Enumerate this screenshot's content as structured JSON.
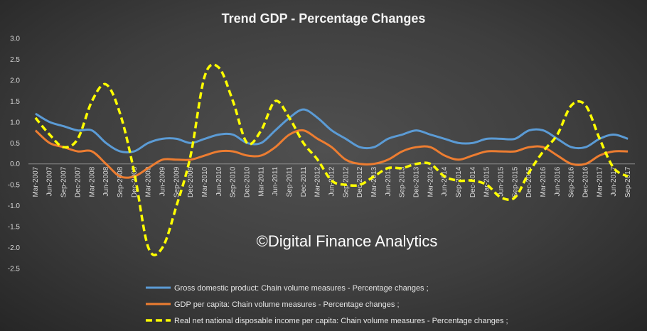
{
  "chart_data": {
    "type": "line",
    "title": "Trend GDP - Percentage Changes",
    "watermark": "©Digital Finance Analytics",
    "xlabel": "",
    "ylabel": "",
    "ylim": [
      -2.5,
      3.0
    ],
    "yticks": [
      "3.0",
      "2.5",
      "2.0",
      "1.5",
      "1.0",
      "0.5",
      "0.0",
      "-0.5",
      "-1.0",
      "-1.5",
      "-2.0",
      "-2.5"
    ],
    "grid": false,
    "legend_position": "bottom",
    "categories": [
      "Mar-2007",
      "Jun-2007",
      "Sep-2007",
      "Dec-2007",
      "Mar-2008",
      "Jun-2008",
      "Sep-2008",
      "Dec-2008",
      "Mar-2009",
      "Jun-2009",
      "Sep-2009",
      "Dec-2009",
      "Mar-2010",
      "Jun-2010",
      "Sep-2010",
      "Dec-2010",
      "Mar-2011",
      "Jun-2011",
      "Sep-2011",
      "Dec-2011",
      "Mar-2012",
      "Jun-2012",
      "Sep-2012",
      "Dec-2012",
      "Mar-2013",
      "Jun-2013",
      "Sep-2013",
      "Dec-2013",
      "Mar-2014",
      "Jun-2014",
      "Sep-2014",
      "Dec-2014",
      "Mar-2015",
      "Jun-2015",
      "Sep-2015",
      "Dec-2015",
      "Mar-2016",
      "Jun-2016",
      "Sep-2016",
      "Dec-2016",
      "Mar-2017",
      "Jun-2017",
      "Sep-2017"
    ],
    "series": [
      {
        "name": "Gross domestic product: Chain volume measures - Percentage changes ;",
        "color": "#5b9bd5",
        "dashed": false,
        "values": [
          1.2,
          1.0,
          0.9,
          0.8,
          0.8,
          0.5,
          0.3,
          0.3,
          0.5,
          0.6,
          0.6,
          0.5,
          0.6,
          0.7,
          0.7,
          0.5,
          0.5,
          0.8,
          1.1,
          1.3,
          1.1,
          0.8,
          0.6,
          0.4,
          0.4,
          0.6,
          0.7,
          0.8,
          0.7,
          0.6,
          0.5,
          0.5,
          0.6,
          0.6,
          0.6,
          0.8,
          0.8,
          0.6,
          0.4,
          0.4,
          0.6,
          0.7,
          0.6
        ]
      },
      {
        "name": "GDP per capita: Chain volume measures - Percentage changes ;",
        "color": "#ed7d31",
        "dashed": false,
        "values": [
          0.8,
          0.5,
          0.4,
          0.3,
          0.3,
          0.0,
          -0.3,
          -0.3,
          -0.1,
          0.1,
          0.1,
          0.1,
          0.2,
          0.3,
          0.3,
          0.2,
          0.2,
          0.4,
          0.7,
          0.8,
          0.6,
          0.4,
          0.1,
          0.0,
          0.0,
          0.1,
          0.3,
          0.4,
          0.4,
          0.2,
          0.1,
          0.2,
          0.3,
          0.3,
          0.3,
          0.4,
          0.4,
          0.2,
          0.0,
          0.0,
          0.2,
          0.3,
          0.3
        ]
      },
      {
        "name": "Real net national disposable income per capita: Chain volume measures - Percentage changes ;",
        "color": "#ffff00",
        "dashed": true,
        "values": [
          1.1,
          0.7,
          0.4,
          0.6,
          1.5,
          1.9,
          1.2,
          -0.2,
          -2.0,
          -2.0,
          -1.0,
          0.2,
          2.1,
          2.3,
          1.5,
          0.5,
          0.8,
          1.5,
          1.1,
          0.5,
          0.1,
          -0.4,
          -0.5,
          -0.5,
          -0.3,
          -0.1,
          -0.1,
          0.0,
          0.0,
          -0.3,
          -0.4,
          -0.4,
          -0.5,
          -0.8,
          -0.8,
          -0.2,
          0.3,
          0.7,
          1.4,
          1.4,
          0.6,
          -0.1,
          -0.3
        ]
      }
    ]
  }
}
